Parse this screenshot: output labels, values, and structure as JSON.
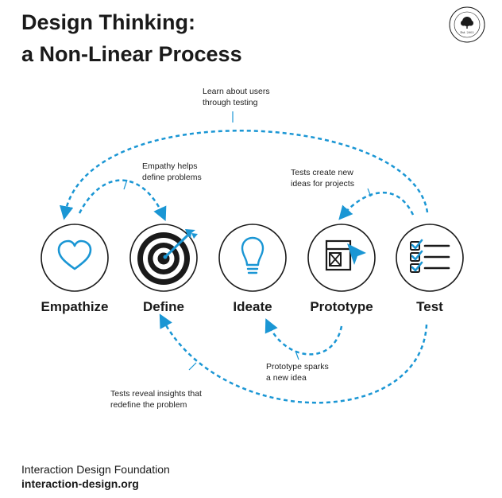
{
  "title": {
    "line1": "Design Thinking:",
    "line2": "a Non-Linear Process"
  },
  "logo": {
    "ring_text": "INTERACTION DESIGN FOUNDATION",
    "est": "Est. 2002",
    "icon": "tree-icon"
  },
  "stages": [
    {
      "label": "Empathize",
      "icon": "heart-icon"
    },
    {
      "label": "Define",
      "icon": "target-icon"
    },
    {
      "label": "Ideate",
      "icon": "lightbulb-icon"
    },
    {
      "label": "Prototype",
      "icon": "prototype-icon"
    },
    {
      "label": "Test",
      "icon": "checklist-icon"
    }
  ],
  "annotations": {
    "learn_about_users": [
      "Learn about users",
      "through testing"
    ],
    "empathy_helps": [
      "Empathy helps",
      "define problems"
    ],
    "tests_create": [
      "Tests create new",
      "ideas for projects"
    ],
    "prototype_sparks": [
      "Prototype sparks",
      "a new idea"
    ],
    "tests_reveal": [
      "Tests reveal insights that",
      "redefine the problem"
    ]
  },
  "footer": {
    "name": "Interaction Design Foundation",
    "url": "interaction-design.org"
  },
  "colors": {
    "accent": "#1a96d4",
    "dark": "#1a1a1a"
  }
}
